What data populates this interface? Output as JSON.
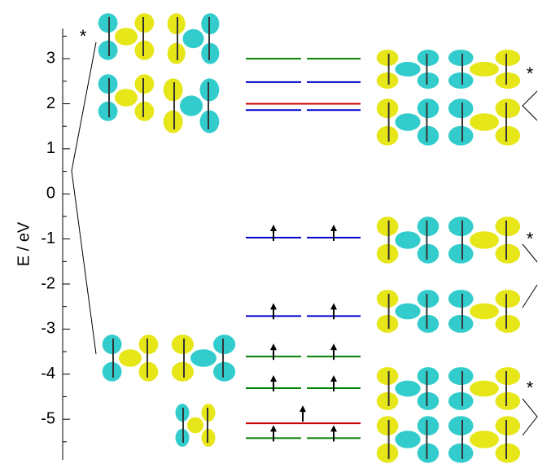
{
  "chart_data": {
    "type": "levels",
    "ylabel": "E / eV",
    "ylim": [
      -5.9,
      3.67
    ],
    "yticks": [
      -5,
      -4,
      -3,
      -2,
      -1,
      0,
      1,
      2,
      3
    ],
    "yminor": [
      -5.5,
      -4.5,
      -3.5,
      -2.5,
      -1.5,
      -0.5,
      0.5,
      1.5,
      2.5,
      3.5
    ],
    "levels": [
      {
        "value": 3.0,
        "color": "#008000",
        "span": "pair",
        "occupied": false
      },
      {
        "value": 2.48,
        "color": "#0000cc",
        "span": "pair",
        "occupied": false
      },
      {
        "value": 2.0,
        "color": "#cc0000",
        "span": "full",
        "occupied": false
      },
      {
        "value": 1.86,
        "color": "#0000cc",
        "span": "pair",
        "occupied": false
      },
      {
        "value": -0.97,
        "color": "#0000cc",
        "span": "pair",
        "occupied": true
      },
      {
        "value": -2.71,
        "color": "#0000cc",
        "span": "pair",
        "occupied": true
      },
      {
        "value": -3.61,
        "color": "#008000",
        "span": "pair",
        "occupied": true
      },
      {
        "value": -4.31,
        "color": "#008000",
        "span": "pair",
        "occupied": true
      },
      {
        "value": -5.09,
        "color": "#cc0000",
        "span": "full",
        "occupied": true
      },
      {
        "value": -5.42,
        "color": "#008000",
        "span": "pair",
        "occupied": true
      }
    ],
    "annotations": [
      "*",
      "*",
      "*",
      "*"
    ]
  }
}
